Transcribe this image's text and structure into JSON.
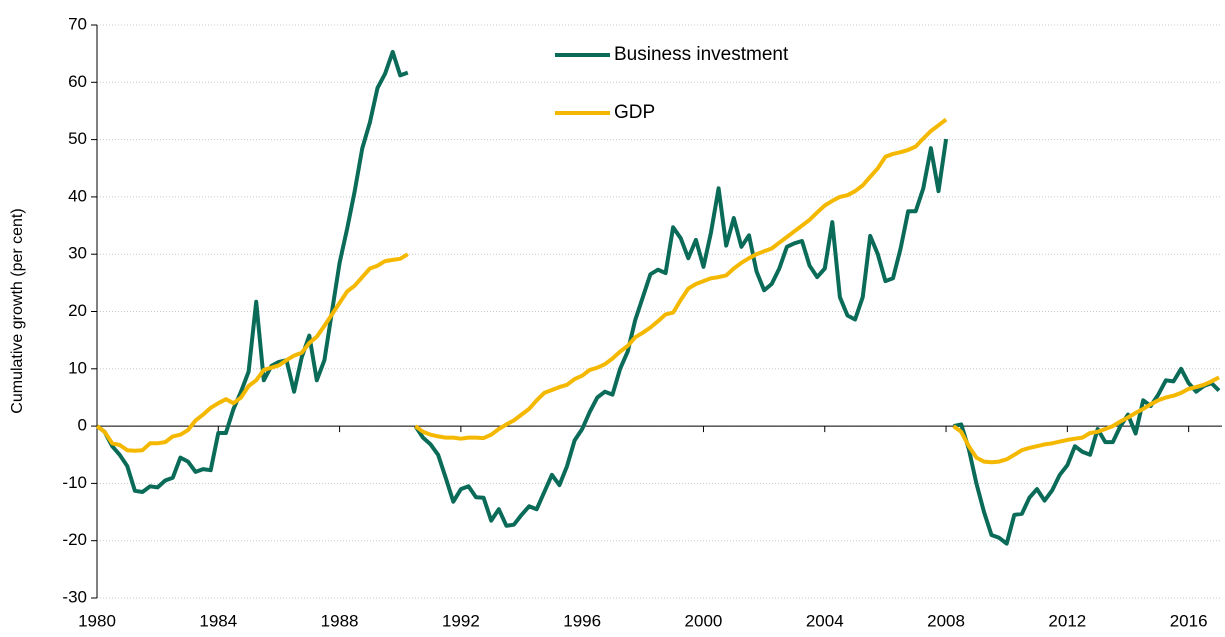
{
  "chart_data": {
    "type": "line",
    "y_label": "Cumulative growth (per cent)",
    "x": [
      1980.0,
      1980.25,
      1980.5,
      1980.75,
      1981.0,
      1981.25,
      1981.5,
      1981.75,
      1982.0,
      1982.25,
      1982.5,
      1982.75,
      1983.0,
      1983.25,
      1983.5,
      1983.75,
      1984.0,
      1984.25,
      1984.5,
      1984.75,
      1985.0,
      1985.25,
      1985.5,
      1985.75,
      1986.0,
      1986.25,
      1986.5,
      1986.75,
      1987.0,
      1987.25,
      1987.5,
      1987.75,
      1988.0,
      1988.25,
      1988.5,
      1988.75,
      1989.0,
      1989.25,
      1989.5,
      1989.75,
      1990.0,
      1990.25,
      null,
      1990.5,
      1990.75,
      1991.0,
      1991.25,
      1991.5,
      1991.75,
      1992.0,
      1992.25,
      1992.5,
      1992.75,
      1993.0,
      1993.25,
      1993.5,
      1993.75,
      1994.0,
      1994.25,
      1994.5,
      1994.75,
      1995.0,
      1995.25,
      1995.5,
      1995.75,
      1996.0,
      1996.25,
      1996.5,
      1996.75,
      1997.0,
      1997.25,
      1997.5,
      1997.75,
      1998.0,
      1998.25,
      1998.5,
      1998.75,
      1999.0,
      1999.25,
      1999.5,
      1999.75,
      2000.0,
      2000.25,
      2000.5,
      2000.75,
      2001.0,
      2001.25,
      2001.5,
      2001.75,
      2002.0,
      2002.25,
      2002.5,
      2002.75,
      2003.0,
      2003.25,
      2003.5,
      2003.75,
      2004.0,
      2004.25,
      2004.5,
      2004.75,
      2005.0,
      2005.25,
      2005.5,
      2005.75,
      2006.0,
      2006.25,
      2006.5,
      2006.75,
      2007.0,
      2007.25,
      2007.5,
      2007.75,
      2008.0,
      null,
      2008.25,
      2008.5,
      2008.75,
      2009.0,
      2009.25,
      2009.5,
      2009.75,
      2010.0,
      2010.25,
      2010.5,
      2010.75,
      2011.0,
      2011.25,
      2011.5,
      2011.75,
      2012.0,
      2012.25,
      2012.5,
      2012.75,
      2013.0,
      2013.25,
      2013.5,
      2013.75,
      2014.0,
      2014.25,
      2014.5,
      2014.75,
      2015.0,
      2015.25,
      2015.5,
      2015.75,
      2016.0,
      2016.25,
      2016.5,
      2016.75,
      2017.0
    ],
    "series": [
      {
        "name": "Business investment",
        "color": "#0a6b58",
        "values": [
          0,
          -1,
          -3.5,
          -5,
          -7,
          -11.3,
          -11.5,
          -10.5,
          -10.7,
          -9.5,
          -9,
          -5.5,
          -6.2,
          -8,
          -7.5,
          -7.7,
          -1.2,
          -1.2,
          3,
          6,
          9.5,
          21.7,
          8,
          10.5,
          11.2,
          11.5,
          6,
          12,
          15.8,
          8,
          11.5,
          20,
          28.5,
          34.5,
          41,
          48.5,
          53,
          59,
          61.5,
          65.3,
          61.2,
          61.7,
          null,
          0,
          -2,
          -3.2,
          -5,
          -9,
          -13.2,
          -11,
          -10.5,
          -12.4,
          -12.5,
          -16.5,
          -14.5,
          -17.4,
          -17.2,
          -15.5,
          -14,
          -14.5,
          -11.5,
          -8.5,
          -10.3,
          -7,
          -2.5,
          -0.5,
          2.5,
          5,
          6,
          5.5,
          10,
          13,
          18.5,
          22.5,
          26.5,
          27.3,
          26.7,
          34.7,
          32.8,
          29.3,
          32.5,
          27.8,
          33.8,
          41.5,
          31.5,
          36.3,
          31.3,
          33.3,
          27,
          23.7,
          24.8,
          27.5,
          31.3,
          31.9,
          32.3,
          28,
          26,
          27.5,
          35.6,
          22.5,
          19.3,
          18.6,
          22.5,
          33.2,
          30,
          25.3,
          25.8,
          31,
          37.5,
          37.5,
          41.5,
          48.5,
          41,
          50.1,
          null,
          0,
          0.3,
          -4,
          -10,
          -15,
          -19,
          -19.5,
          -20.5,
          -15.5,
          -15.3,
          -12.5,
          -11,
          -13,
          -11.2,
          -8.5,
          -6.8,
          -3.5,
          -4.5,
          -5,
          -0.5,
          -2.8,
          -2.8,
          0,
          2,
          -1.3,
          4.5,
          3.5,
          5.5,
          8,
          7.8,
          10,
          7.5,
          6,
          7,
          7.5,
          6.2
        ]
      },
      {
        "name": "GDP",
        "color": "#f5b800",
        "values": [
          0,
          -1,
          -3,
          -3.3,
          -4.2,
          -4.3,
          -4.2,
          -3,
          -3,
          -2.8,
          -1.8,
          -1.5,
          -0.7,
          1,
          2,
          3.2,
          4,
          4.7,
          4,
          5,
          7,
          8,
          9.8,
          10.2,
          10.6,
          11.5,
          12.3,
          12.8,
          14.5,
          15.6,
          17.5,
          19.5,
          21.5,
          23.5,
          24.5,
          26,
          27.5,
          28,
          28.8,
          29,
          29.2,
          30,
          null,
          0,
          -1,
          -1.5,
          -1.8,
          -2,
          -2,
          -2.2,
          -2,
          -2,
          -2.1,
          -1.5,
          -0.5,
          0.3,
          1,
          2,
          3,
          4.5,
          5.8,
          6.3,
          6.8,
          7.2,
          8.2,
          8.8,
          9.8,
          10.2,
          10.8,
          11.8,
          13,
          14,
          15.5,
          16.3,
          17.2,
          18.3,
          19.5,
          19.8,
          22,
          24,
          24.8,
          25.3,
          25.8,
          26,
          26.3,
          27.5,
          28.5,
          29.3,
          30,
          30.5,
          31,
          32,
          33,
          34,
          35,
          36,
          37.3,
          38.5,
          39.3,
          40,
          40.3,
          41,
          42,
          43.5,
          45,
          47,
          47.5,
          47.8,
          48.2,
          48.8,
          50.2,
          51.5,
          52.5,
          53.5,
          null,
          0,
          -1,
          -3.5,
          -5.5,
          -6.2,
          -6.3,
          -6.2,
          -5.8,
          -5,
          -4.2,
          -3.8,
          -3.5,
          -3.2,
          -3,
          -2.7,
          -2.4,
          -2.2,
          -2,
          -1.2,
          -1,
          -0.5,
          0,
          0.8,
          1.5,
          2.3,
          3,
          3.8,
          4.5,
          5,
          5.3,
          5.8,
          6.5,
          6.8,
          7.2,
          7.8,
          8.5
        ]
      }
    ],
    "xlim": [
      1980,
      2017.1
    ],
    "xticks": [
      1980,
      1984,
      1988,
      1992,
      1996,
      2000,
      2004,
      2008,
      2012,
      2016
    ],
    "ylim": [
      -30,
      70
    ],
    "yticks": [
      -30,
      -20,
      -10,
      0,
      10,
      20,
      30,
      40,
      50,
      60,
      70
    ],
    "grid": true,
    "legend": "top"
  }
}
